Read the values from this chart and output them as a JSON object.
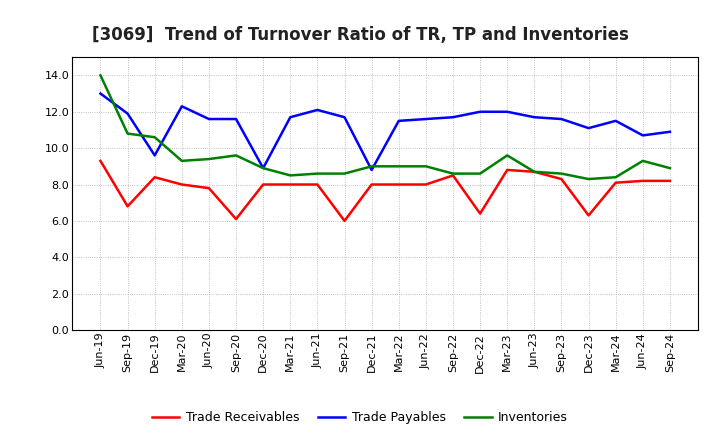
{
  "title": "[3069]  Trend of Turnover Ratio of TR, TP and Inventories",
  "ylim": [
    0.0,
    15.0
  ],
  "yticks": [
    0.0,
    2.0,
    4.0,
    6.0,
    8.0,
    10.0,
    12.0,
    14.0
  ],
  "x_labels": [
    "Jun-19",
    "Sep-19",
    "Dec-19",
    "Mar-20",
    "Jun-20",
    "Sep-20",
    "Dec-20",
    "Mar-21",
    "Jun-21",
    "Sep-21",
    "Dec-21",
    "Mar-22",
    "Jun-22",
    "Sep-22",
    "Dec-22",
    "Mar-23",
    "Jun-23",
    "Sep-23",
    "Dec-23",
    "Mar-24",
    "Jun-24",
    "Sep-24"
  ],
  "trade_receivables": [
    9.3,
    6.8,
    8.4,
    8.0,
    7.8,
    6.1,
    8.0,
    8.0,
    8.0,
    6.0,
    8.0,
    8.0,
    8.0,
    8.5,
    6.4,
    8.8,
    8.7,
    8.3,
    6.3,
    8.1,
    8.2,
    8.2
  ],
  "trade_payables": [
    13.0,
    11.9,
    9.6,
    12.3,
    11.6,
    11.6,
    8.9,
    11.7,
    12.1,
    11.7,
    8.8,
    11.5,
    11.6,
    11.7,
    12.0,
    12.0,
    11.7,
    11.6,
    11.1,
    11.5,
    10.7,
    10.9
  ],
  "inventories": [
    14.0,
    10.8,
    10.6,
    9.3,
    9.4,
    9.6,
    8.9,
    8.5,
    8.6,
    8.6,
    9.0,
    9.0,
    9.0,
    8.6,
    8.6,
    9.6,
    8.7,
    8.6,
    8.3,
    8.4,
    9.3,
    8.9
  ],
  "color_tr": "#ff0000",
  "color_tp": "#0000ff",
  "color_inv": "#008000",
  "legend_labels": [
    "Trade Receivables",
    "Trade Payables",
    "Inventories"
  ],
  "background_color": "#ffffff",
  "grid_color": "#b0b0b0",
  "title_fontsize": 12,
  "tick_fontsize": 8,
  "legend_fontsize": 9,
  "linewidth": 1.8
}
